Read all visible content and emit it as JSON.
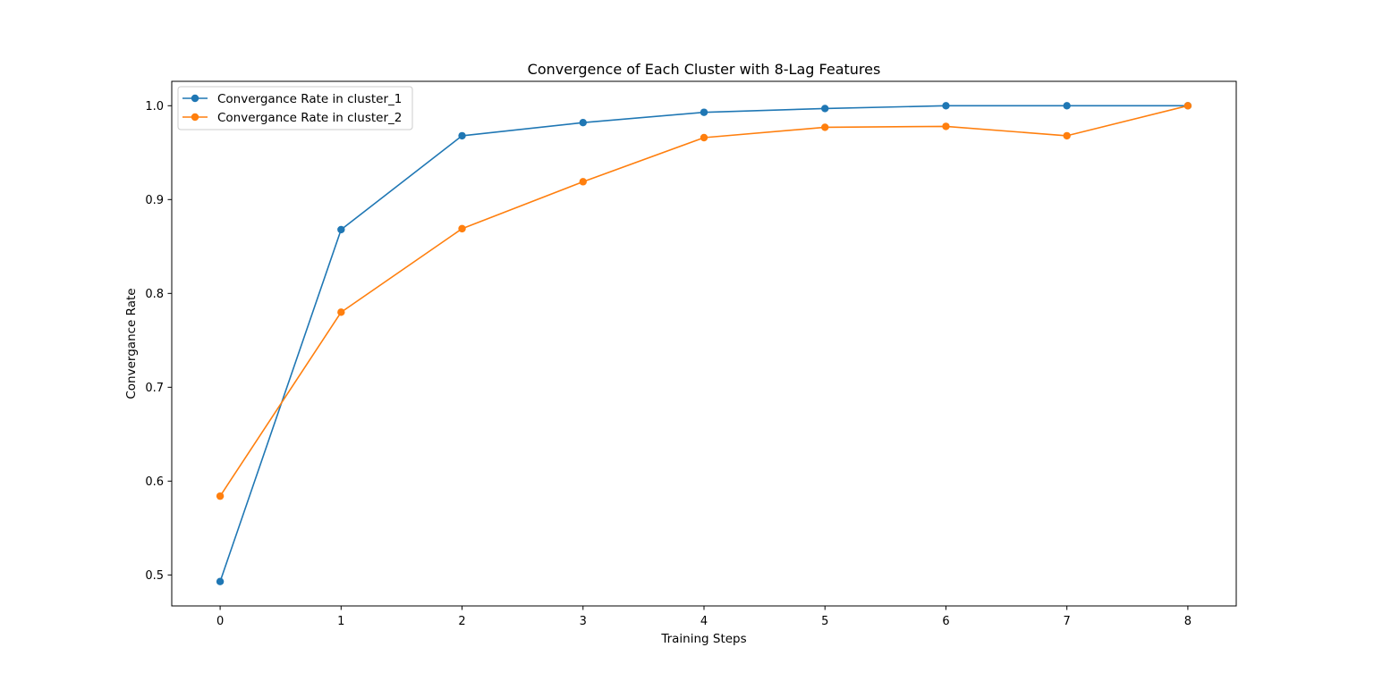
{
  "chart_data": {
    "type": "line",
    "title": "Convergence of Each Cluster with 8-Lag Features",
    "xlabel": "Training Steps",
    "ylabel": "Convergance Rate",
    "x": [
      0,
      1,
      2,
      3,
      4,
      5,
      6,
      7,
      8
    ],
    "xlim": [
      -0.4,
      8.4
    ],
    "ylim": [
      0.467,
      1.026
    ],
    "xticks": [
      0,
      1,
      2,
      3,
      4,
      5,
      6,
      7,
      8
    ],
    "yticks": [
      0.5,
      0.6,
      0.7,
      0.8,
      0.9,
      1.0
    ],
    "ytick_labels": [
      "0.5",
      "0.6",
      "0.7",
      "0.8",
      "0.9",
      "1.0"
    ],
    "grid": false,
    "legend_position": "upper-left",
    "series": [
      {
        "name": "Convergance Rate in cluster_1",
        "color": "#1f77b4",
        "marker": "circle",
        "values": [
          0.493,
          0.868,
          0.968,
          0.982,
          0.993,
          0.997,
          1.0,
          1.0,
          1.0
        ]
      },
      {
        "name": "Convergance Rate in cluster_2",
        "color": "#ff7f0e",
        "marker": "circle",
        "values": [
          0.584,
          0.78,
          0.869,
          0.919,
          0.966,
          0.977,
          0.978,
          0.968,
          1.0
        ]
      }
    ]
  }
}
